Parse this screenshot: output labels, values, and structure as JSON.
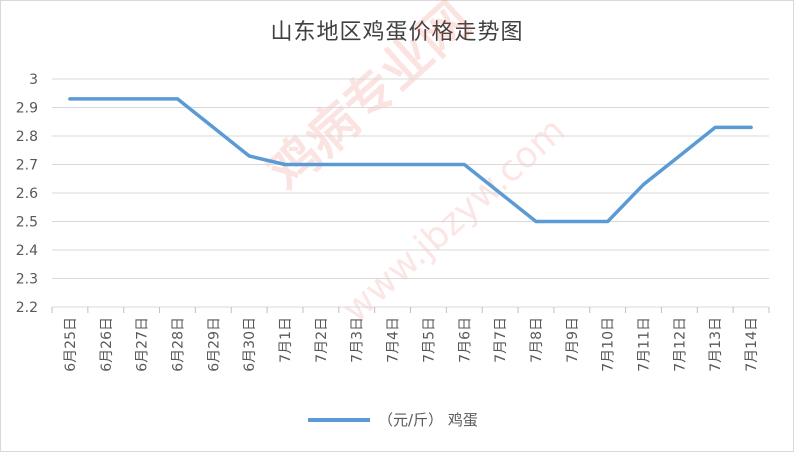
{
  "chart_data": {
    "type": "line",
    "title": "山东地区鸡蛋价格走势图",
    "categories": [
      "6月25日",
      "6月26日",
      "6月27日",
      "6月28日",
      "6月29日",
      "6月30日",
      "7月1日",
      "7月2日",
      "7月3日",
      "7月4日",
      "7月5日",
      "7月6日",
      "7月7日",
      "7月8日",
      "7月9日",
      "7月10日",
      "7月11日",
      "7月12日",
      "7月13日",
      "7月14日"
    ],
    "series": [
      {
        "name": "（元/斤） 鸡蛋",
        "values": [
          2.93,
          2.93,
          2.93,
          2.93,
          2.83,
          2.73,
          2.7,
          2.7,
          2.7,
          2.7,
          2.7,
          2.7,
          2.6,
          2.5,
          2.5,
          2.5,
          2.63,
          2.73,
          2.83,
          2.83
        ],
        "color": "#5b9bd5"
      }
    ],
    "ylim": [
      2.2,
      3.0
    ],
    "yticks": [
      "2.2",
      "2.3",
      "2.4",
      "2.5",
      "2.6",
      "2.7",
      "2.8",
      "2.9",
      "3"
    ],
    "grid": true,
    "legend": "bottom",
    "xlabel": "",
    "ylabel": ""
  },
  "watermark": {
    "line1": "鸡病专业网",
    "line2": "www.jbzyw.com"
  }
}
